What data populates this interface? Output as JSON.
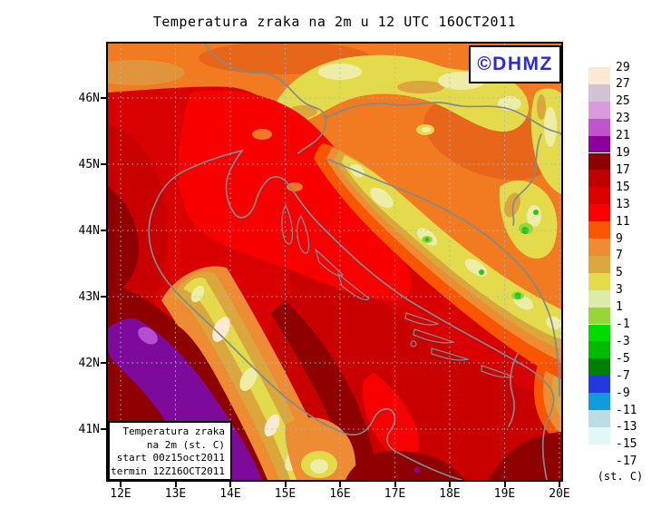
{
  "title": "Temperatura zraka na 2m u 12 UTC 16OCT2011",
  "watermark": "©DHMZ",
  "info_box": {
    "line1": "Temperatura zraka",
    "line2": "na 2m (st. C)",
    "line3": "start 00z15oct2011",
    "line4": "termin 12Z16OCT2011"
  },
  "axes": {
    "lat_labels": [
      "46N",
      "45N",
      "44N",
      "43N",
      "42N",
      "41N"
    ],
    "lon_labels": [
      "12E",
      "13E",
      "14E",
      "15E",
      "16E",
      "17E",
      "18E",
      "19E",
      "20E"
    ]
  },
  "colorbar": {
    "unit": "(st. C)",
    "tick_labels": [
      "29",
      "27",
      "25",
      "23",
      "21",
      "19",
      "17",
      "15",
      "13",
      "11",
      "9",
      "7",
      "5",
      "3",
      "1",
      "-1",
      "-3",
      "-5",
      "-7",
      "-9",
      "-11",
      "-13",
      "-15",
      "-17"
    ],
    "box_colors": [
      "#FCE9D3",
      "#D1C2D6",
      "#D99BDB",
      "#C153CB",
      "#8E009E",
      "#8F0000",
      "#C00000",
      "#DC0000",
      "#FC0000",
      "#FA5500",
      "#ED8C33",
      "#DBA63B",
      "#E3DB4B",
      "#DCECA8",
      "#97D637",
      "#00DC00",
      "#00BC00",
      "#007F00",
      "#2238E0",
      "#0F9CDC",
      "#BCDCE4",
      "#E0F8F8",
      "#FFFFFF"
    ]
  },
  "colors": {
    "watermark_blue": "#2B2BD5",
    "grid_dots": "#9FBCCF",
    "coastline_gray": "#7E8C8C",
    "map_border": "#000000"
  }
}
